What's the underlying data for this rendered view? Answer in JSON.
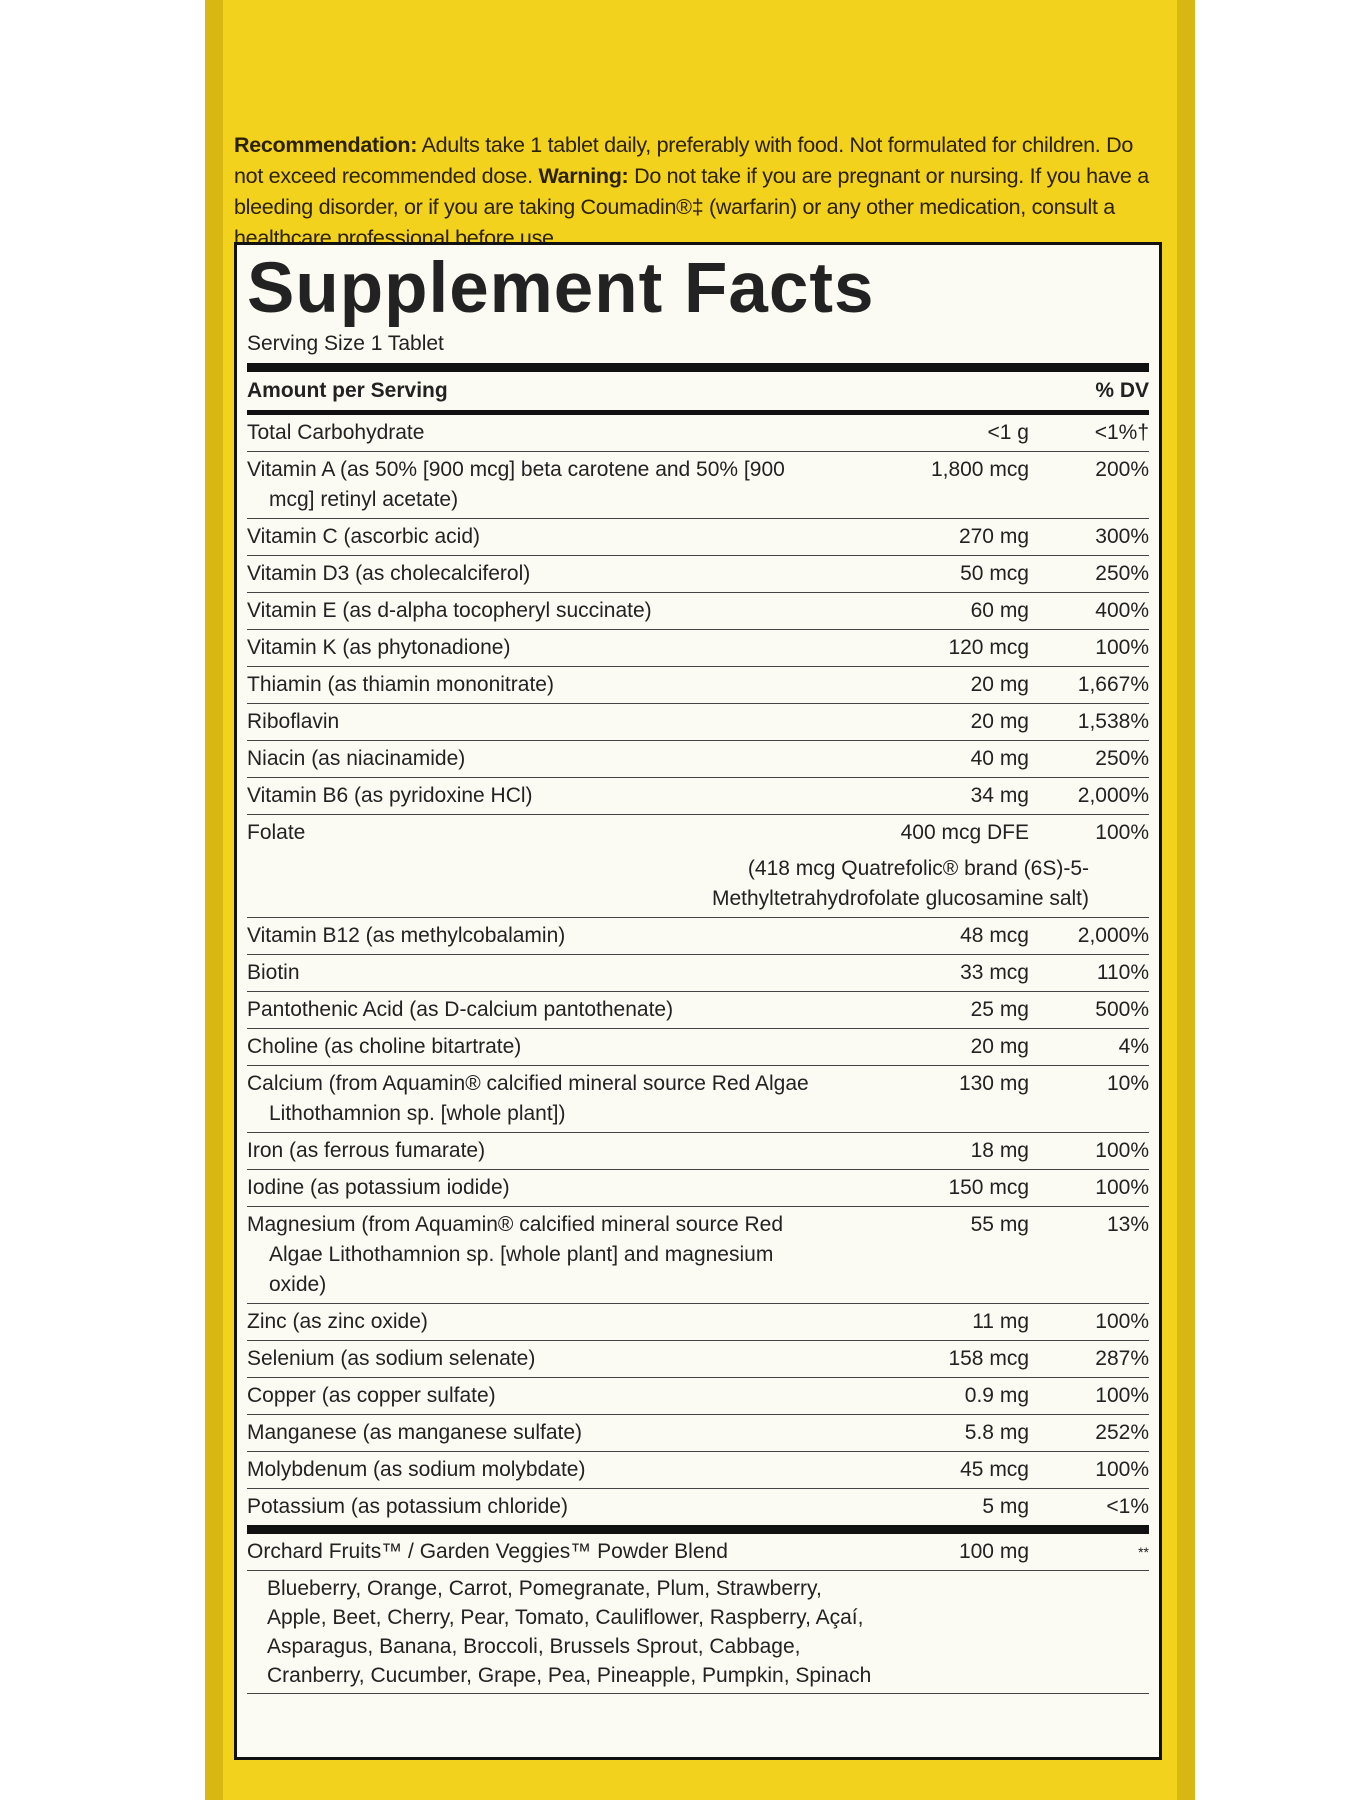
{
  "recommendation": {
    "label": "Recommendation:",
    "text": "Adults take 1 tablet daily, preferably with food. Not formulated for children. Do not exceed recommended dose.",
    "warning_label": "Warning:",
    "warning_text": "Do not take if you are pregnant or nursing. If you have a bleeding disorder, or if you are taking Coumadin®‡ (warfarin) or any other medication, consult a healthcare professional before use."
  },
  "facts": {
    "title": "Supplement Facts",
    "serving_size": "Serving Size 1 Tablet",
    "header": [
      "Amount per Serving",
      "% DV"
    ],
    "rows": [
      [
        "Total Carbohydrate",
        "<1 g",
        "<1%†"
      ],
      [
        "Vitamin A (as 50% [900 mcg] beta carotene and 50% [900 mcg] retinyl acetate)",
        "1,800 mcg",
        "200%"
      ],
      [
        "Vitamin C (ascorbic acid)",
        "270 mg",
        "300%"
      ],
      [
        "Vitamin D3 (as cholecalciferol)",
        "50 mcg",
        "250%"
      ],
      [
        "Vitamin E (as d-alpha tocopheryl succinate)",
        "60 mg",
        "400%"
      ],
      [
        "Vitamin K (as phytonadione)",
        "120 mcg",
        "100%"
      ],
      [
        "Thiamin (as thiamin mononitrate)",
        "20 mg",
        "1,667%"
      ],
      [
        "Riboflavin",
        "20 mg",
        "1,538%"
      ],
      [
        "Niacin (as niacinamide)",
        "40 mg",
        "250%"
      ],
      [
        "Vitamin B6 (as pyridoxine HCl)",
        "34 mg",
        "2,000%"
      ],
      [
        "Folate",
        "400 mcg DFE",
        "100%"
      ],
      [
        "Vitamin B12 (as methylcobalamin)",
        "48 mcg",
        "2,000%"
      ],
      [
        "Biotin",
        "33 mcg",
        "110%"
      ],
      [
        "Pantothenic Acid (as D-calcium pantothenate)",
        "25 mg",
        "500%"
      ],
      [
        "Choline (as choline bitartrate)",
        "20 mg",
        "4%"
      ],
      [
        "Calcium (from Aquamin® calcified mineral source Red Algae Lithothamnion sp. [whole plant])",
        "130 mg",
        "10%"
      ],
      [
        "Iron (as ferrous fumarate)",
        "18 mg",
        "100%"
      ],
      [
        "Iodine (as potassium iodide)",
        "150 mcg",
        "100%"
      ],
      [
        "Magnesium (from Aquamin® calcified mineral source Red Algae Lithothamnion sp. [whole plant] and magnesium oxide)",
        "55 mg",
        "13%"
      ],
      [
        "Zinc (as zinc oxide)",
        "11 mg",
        "100%"
      ],
      [
        "Selenium (as sodium selenate)",
        "158 mcg",
        "287%"
      ],
      [
        "Copper (as copper sulfate)",
        "0.9 mg",
        "100%"
      ],
      [
        "Manganese (as manganese sulfate)",
        "5.8 mg",
        "252%"
      ],
      [
        "Molybdenum (as sodium molybdate)",
        "45 mcg",
        "100%"
      ],
      [
        "Potassium (as potassium chloride)",
        "5 mg",
        "<1%"
      ]
    ],
    "folate_note": "(418 mcg Quatrefolic® brand (6S)-5-Methyltetrahydrofolate glucosamine salt)",
    "blend": {
      "name": "Orchard Fruits™ / Garden Veggies™ Powder Blend",
      "amount": "100 mg",
      "dv": "**",
      "ingredients": "Blueberry, Orange, Carrot, Pomegranate, Plum, Strawberry, Apple, Beet, Cherry, Pear, Tomato, Cauliflower, Raspberry, Açaí, Asparagus, Banana, Broccoli, Brussels Sprout, Cabbage, Cranberry, Cucumber, Grape, Pea, Pineapple, Pumpkin, Spinach"
    }
  }
}
